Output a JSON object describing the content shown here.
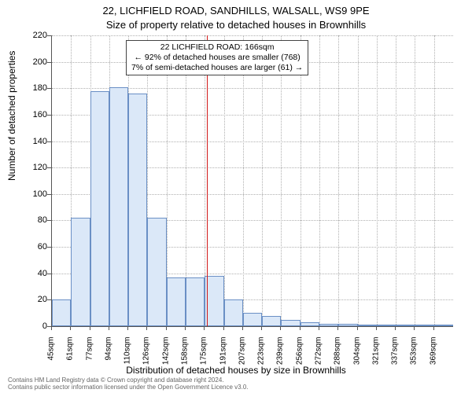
{
  "titles": {
    "main": "22, LICHFIELD ROAD, SANDHILLS, WALSALL, WS9 9PE",
    "sub": "Size of property relative to detached houses in Brownhills"
  },
  "axes": {
    "y_label": "Number of detached properties",
    "x_label": "Distribution of detached houses by size in Brownhills"
  },
  "chart": {
    "type": "histogram",
    "ylim": [
      0,
      220
    ],
    "yticks": [
      0,
      20,
      40,
      60,
      80,
      100,
      120,
      140,
      160,
      180,
      200,
      220
    ],
    "xtick_labels": [
      "45sqm",
      "61sqm",
      "77sqm",
      "94sqm",
      "110sqm",
      "126sqm",
      "142sqm",
      "158sqm",
      "175sqm",
      "191sqm",
      "207sqm",
      "223sqm",
      "239sqm",
      "256sqm",
      "272sqm",
      "288sqm",
      "304sqm",
      "321sqm",
      "337sqm",
      "353sqm",
      "369sqm"
    ],
    "bars": [
      20,
      82,
      178,
      181,
      176,
      82,
      37,
      37,
      38,
      20,
      10,
      8,
      5,
      3,
      2,
      2,
      0,
      1,
      1,
      0,
      1
    ],
    "bar_fill": "#dbe8f8",
    "bar_stroke": "#6a8fc5",
    "grid_color": "#b0b0b0",
    "axis_color": "#555555",
    "background": "#ffffff",
    "reference_line_index": 8.1,
    "reference_line_color": "#d11919"
  },
  "annotation": {
    "line1": "22 LICHFIELD ROAD: 166sqm",
    "line2": "← 92% of detached houses are smaller (768)",
    "line3": "7% of semi-detached houses are larger (61) →"
  },
  "footer": {
    "line1": "Contains HM Land Registry data © Crown copyright and database right 2024.",
    "line2": "Contains public sector information licensed under the Open Government Licence v3.0."
  },
  "style": {
    "title_fontsize": 13,
    "axis_label_fontsize": 12,
    "tick_fontsize": 11,
    "xtick_fontsize": 10,
    "annotation_fontsize": 10.5,
    "footer_fontsize": 8
  }
}
